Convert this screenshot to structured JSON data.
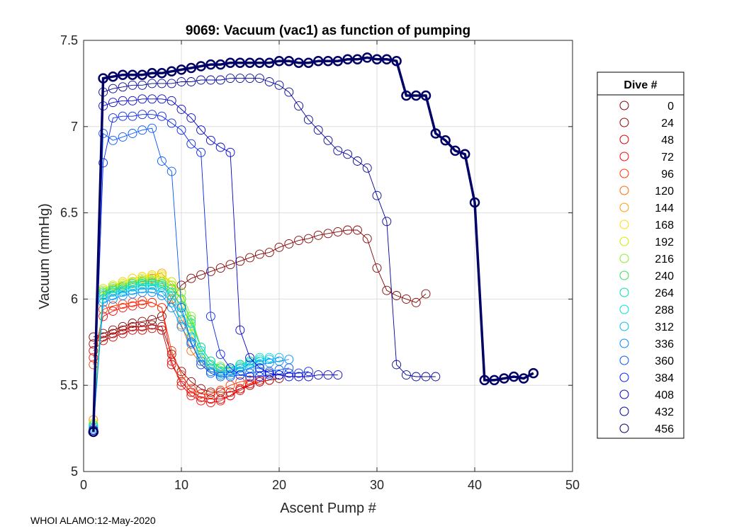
{
  "chart_data": {
    "type": "scatter",
    "title": "9069: Vacuum (vac1) as function of pumping",
    "xlabel": "Ascent Pump #",
    "ylabel": "Vacuum (mmHg)",
    "xlim": [
      0,
      50
    ],
    "ylim": [
      5,
      7.5
    ],
    "xticks": [
      0,
      10,
      20,
      30,
      40,
      50
    ],
    "yticks": [
      5,
      5.5,
      6,
      6.5,
      7,
      7.5
    ],
    "xtick_labels": [
      "0",
      "10",
      "20",
      "30",
      "40",
      "50"
    ],
    "ytick_labels": [
      "5",
      "5.5",
      "6",
      "6.5",
      "7",
      "7.5"
    ],
    "grid": true,
    "legend_title": "Dive #",
    "legend_placement": "right-outside",
    "legend": [
      {
        "label": "0",
        "color": "#800000"
      },
      {
        "label": "24",
        "color": "#990000"
      },
      {
        "label": "48",
        "color": "#cc0000"
      },
      {
        "label": "72",
        "color": "#ff0000"
      },
      {
        "label": "96",
        "color": "#ff3300"
      },
      {
        "label": "120",
        "color": "#ff6600"
      },
      {
        "label": "144",
        "color": "#ff9900"
      },
      {
        "label": "168",
        "color": "#ffdd00"
      },
      {
        "label": "192",
        "color": "#ccee00"
      },
      {
        "label": "216",
        "color": "#88ee22"
      },
      {
        "label": "240",
        "color": "#33dd55"
      },
      {
        "label": "264",
        "color": "#00ddaa"
      },
      {
        "label": "288",
        "color": "#00dddd"
      },
      {
        "label": "312",
        "color": "#00bbee"
      },
      {
        "label": "336",
        "color": "#0088ff"
      },
      {
        "label": "360",
        "color": "#0055ff"
      },
      {
        "label": "384",
        "color": "#0022ee"
      },
      {
        "label": "408",
        "color": "#0000cc"
      },
      {
        "label": "432",
        "color": "#000099"
      },
      {
        "label": "456",
        "color": "#000066"
      }
    ],
    "series": [
      {
        "name": "0",
        "color": "#800000",
        "x": [
          1,
          2,
          3,
          4,
          5,
          6,
          7,
          8,
          9,
          10,
          11,
          12,
          13,
          14,
          15,
          16,
          17,
          18,
          19,
          20,
          21,
          22,
          23,
          24,
          25,
          26,
          27,
          28,
          29,
          30,
          31,
          32,
          33,
          34,
          35
        ],
        "y": [
          5.78,
          5.8,
          5.82,
          5.84,
          5.86,
          5.87,
          5.88,
          5.9,
          6.0,
          6.08,
          6.12,
          6.14,
          6.16,
          6.18,
          6.2,
          6.22,
          6.24,
          6.26,
          6.27,
          6.3,
          6.32,
          6.34,
          6.35,
          6.37,
          6.38,
          6.39,
          6.4,
          6.4,
          6.35,
          6.18,
          6.05,
          6.02,
          6.0,
          5.98,
          6.03
        ]
      },
      {
        "name": "24",
        "color": "#990000",
        "x": [
          1,
          2,
          3,
          4,
          5,
          6,
          7,
          8,
          9,
          10,
          11,
          12,
          13,
          14,
          15,
          16,
          17,
          18,
          19,
          20
        ],
        "y": [
          5.74,
          5.78,
          5.8,
          5.82,
          5.84,
          5.84,
          5.85,
          5.84,
          5.68,
          5.58,
          5.52,
          5.48,
          5.46,
          5.46,
          5.46,
          5.48,
          5.5,
          5.52,
          5.53,
          5.54
        ]
      },
      {
        "name": "48",
        "color": "#cc0000",
        "x": [
          1,
          2,
          3,
          4,
          5,
          6,
          7,
          8,
          9,
          10,
          11,
          12,
          13,
          14,
          15,
          16,
          17,
          18,
          19
        ],
        "y": [
          5.7,
          5.76,
          5.78,
          5.8,
          5.82,
          5.82,
          5.83,
          5.82,
          5.62,
          5.52,
          5.46,
          5.43,
          5.42,
          5.42,
          5.44,
          5.47,
          5.5,
          5.52,
          5.53
        ]
      },
      {
        "name": "72",
        "color": "#ff0000",
        "x": [
          1,
          2,
          3,
          4,
          5,
          6,
          7,
          8,
          9,
          10,
          11,
          12,
          13,
          14,
          15,
          16,
          17,
          18
        ],
        "y": [
          5.66,
          5.9,
          5.93,
          5.95,
          5.96,
          5.97,
          5.98,
          5.95,
          5.64,
          5.5,
          5.44,
          5.41,
          5.4,
          5.41,
          5.44,
          5.48,
          5.51,
          5.53
        ]
      },
      {
        "name": "96",
        "color": "#ff3300",
        "x": [
          1,
          2,
          3,
          4,
          5,
          6,
          7,
          8,
          9,
          10,
          11,
          12,
          13,
          14,
          15,
          16,
          17
        ],
        "y": [
          5.62,
          5.94,
          5.96,
          5.97,
          5.98,
          5.99,
          5.98,
          5.95,
          5.7,
          5.56,
          5.48,
          5.45,
          5.45,
          5.47,
          5.5,
          5.52,
          5.53
        ]
      },
      {
        "name": "120",
        "color": "#ff6600",
        "x": [
          1,
          2,
          3,
          4,
          5,
          6,
          7,
          8,
          9,
          10,
          11,
          12,
          13,
          14,
          15,
          16
        ],
        "y": [
          5.3,
          6.02,
          6.05,
          6.07,
          6.09,
          6.1,
          6.12,
          6.1,
          6.0,
          5.85,
          5.7,
          5.62,
          5.58,
          5.57,
          5.58,
          5.6
        ]
      },
      {
        "name": "144",
        "color": "#ff9900",
        "x": [
          1,
          2,
          3,
          4,
          5,
          6,
          7,
          8,
          9,
          10,
          11,
          12,
          13,
          14,
          15
        ],
        "y": [
          5.3,
          6.04,
          6.07,
          6.1,
          6.12,
          6.13,
          6.14,
          6.15,
          6.08,
          5.92,
          5.74,
          5.64,
          5.6,
          5.58,
          5.59
        ]
      },
      {
        "name": "168",
        "color": "#ffdd00",
        "x": [
          1,
          2,
          3,
          4,
          5,
          6,
          7,
          8,
          9,
          10,
          11,
          12,
          13,
          14,
          15
        ],
        "y": [
          5.28,
          6.06,
          6.08,
          6.1,
          6.12,
          6.13,
          6.14,
          6.14,
          6.1,
          6.0,
          5.8,
          5.66,
          5.6,
          5.58,
          5.6
        ]
      },
      {
        "name": "192",
        "color": "#ccee00",
        "x": [
          1,
          2,
          3,
          4,
          5,
          6,
          7,
          8,
          9,
          10,
          11,
          12,
          13,
          14,
          15
        ],
        "y": [
          5.28,
          6.06,
          6.08,
          6.09,
          6.1,
          6.12,
          6.13,
          6.13,
          6.1,
          6.04,
          5.84,
          5.68,
          5.62,
          5.6,
          5.6
        ]
      },
      {
        "name": "216",
        "color": "#88ee22",
        "x": [
          1,
          2,
          3,
          4,
          5,
          6,
          7,
          8,
          9,
          10,
          11,
          12,
          13,
          14,
          15,
          16
        ],
        "y": [
          5.27,
          6.05,
          6.07,
          6.08,
          6.1,
          6.11,
          6.11,
          6.1,
          6.08,
          6.04,
          5.9,
          5.72,
          5.64,
          5.61,
          5.6,
          5.62
        ]
      },
      {
        "name": "240",
        "color": "#33dd55",
        "x": [
          1,
          2,
          3,
          4,
          5,
          6,
          7,
          8,
          9,
          10,
          11,
          12,
          13,
          14,
          15,
          16,
          17
        ],
        "y": [
          5.27,
          6.04,
          6.06,
          6.07,
          6.09,
          6.1,
          6.1,
          6.09,
          6.06,
          6.0,
          5.88,
          5.72,
          5.64,
          5.6,
          5.6,
          5.62,
          5.64
        ]
      },
      {
        "name": "264",
        "color": "#00ddaa",
        "x": [
          1,
          2,
          3,
          4,
          5,
          6,
          7,
          8,
          9,
          10,
          11,
          12,
          13,
          14,
          15,
          16,
          17,
          18
        ],
        "y": [
          5.26,
          6.03,
          6.05,
          6.06,
          6.08,
          6.09,
          6.09,
          6.08,
          6.04,
          5.96,
          5.86,
          5.72,
          5.64,
          5.6,
          5.6,
          5.62,
          5.64,
          5.66
        ]
      },
      {
        "name": "288",
        "color": "#00dddd",
        "x": [
          1,
          2,
          3,
          4,
          5,
          6,
          7,
          8,
          9,
          10,
          11,
          12,
          13,
          14,
          15,
          16,
          17,
          18,
          19
        ],
        "y": [
          5.26,
          6.02,
          6.04,
          6.05,
          6.07,
          6.08,
          6.08,
          6.07,
          6.02,
          5.92,
          5.82,
          5.7,
          5.62,
          5.58,
          5.59,
          5.61,
          5.63,
          5.65,
          5.66
        ]
      },
      {
        "name": "312",
        "color": "#00bbee",
        "x": [
          1,
          2,
          3,
          4,
          5,
          6,
          7,
          8,
          9,
          10,
          11,
          12,
          13,
          14,
          15,
          16,
          17,
          18,
          19,
          20
        ],
        "y": [
          5.25,
          6.0,
          6.02,
          6.04,
          6.05,
          6.06,
          6.06,
          6.04,
          5.98,
          5.88,
          5.78,
          5.66,
          5.6,
          5.57,
          5.58,
          5.6,
          5.62,
          5.64,
          5.65,
          5.66
        ]
      },
      {
        "name": "336",
        "color": "#0088ff",
        "x": [
          1,
          2,
          3,
          4,
          5,
          6,
          7,
          8,
          9,
          10,
          11,
          12,
          13,
          14,
          15,
          16,
          17,
          18,
          19,
          20,
          21
        ],
        "y": [
          5.25,
          5.98,
          6.0,
          6.02,
          6.03,
          6.04,
          6.04,
          6.02,
          5.95,
          5.84,
          5.74,
          5.64,
          5.58,
          5.56,
          5.56,
          5.58,
          5.6,
          5.62,
          5.63,
          5.64,
          5.65
        ]
      },
      {
        "name": "360",
        "color": "#0055ff",
        "x": [
          1,
          2,
          3,
          4,
          5,
          6,
          7,
          8,
          9,
          10,
          11,
          12,
          13,
          14,
          15,
          16,
          17,
          18,
          19,
          20,
          21
        ],
        "y": [
          5.24,
          6.96,
          6.92,
          6.94,
          6.96,
          6.98,
          6.99,
          6.8,
          6.74,
          5.95,
          5.75,
          5.62,
          5.57,
          5.55,
          5.55,
          5.56,
          5.57,
          5.58,
          5.58,
          5.59,
          5.6
        ]
      },
      {
        "name": "384",
        "color": "#0022ee",
        "x": [
          1,
          2,
          3,
          4,
          5,
          6,
          7,
          8,
          9,
          10,
          11,
          12,
          13,
          14,
          15,
          16,
          17,
          18,
          19,
          20,
          21,
          22,
          23
        ],
        "y": [
          5.24,
          6.79,
          7.05,
          7.06,
          7.06,
          7.07,
          7.07,
          7.06,
          7.02,
          6.98,
          6.9,
          6.85,
          5.9,
          5.68,
          5.6,
          5.56,
          5.55,
          5.55,
          5.56,
          5.56,
          5.57,
          5.57,
          5.58
        ]
      },
      {
        "name": "408",
        "color": "#0000cc",
        "x": [
          1,
          2,
          3,
          4,
          5,
          6,
          7,
          8,
          9,
          10,
          11,
          12,
          13,
          14,
          15,
          16,
          17,
          18,
          19,
          20,
          21,
          22,
          23,
          24,
          25,
          26
        ],
        "y": [
          5.24,
          7.12,
          7.14,
          7.15,
          7.15,
          7.16,
          7.16,
          7.16,
          7.15,
          7.1,
          7.05,
          6.98,
          6.92,
          6.88,
          6.85,
          5.82,
          5.66,
          5.6,
          5.57,
          5.56,
          5.55,
          5.55,
          5.55,
          5.56,
          5.56,
          5.56
        ]
      },
      {
        "name": "432",
        "color": "#000099",
        "x": [
          1,
          2,
          3,
          4,
          5,
          6,
          7,
          8,
          9,
          10,
          11,
          12,
          13,
          14,
          15,
          16,
          17,
          18,
          19,
          20,
          21,
          22,
          23,
          24,
          25,
          26,
          27,
          28,
          29,
          30,
          31,
          32,
          33,
          34,
          35,
          36
        ],
        "y": [
          5.23,
          7.2,
          7.22,
          7.23,
          7.24,
          7.24,
          7.25,
          7.25,
          7.25,
          7.26,
          7.26,
          7.27,
          7.27,
          7.27,
          7.28,
          7.28,
          7.28,
          7.28,
          7.26,
          7.24,
          7.2,
          7.12,
          7.04,
          6.98,
          6.92,
          6.86,
          6.84,
          6.8,
          6.76,
          6.6,
          6.45,
          5.62,
          5.56,
          5.55,
          5.55,
          5.55
        ]
      },
      {
        "name": "456",
        "color": "#000066",
        "x": [
          1,
          2,
          3,
          4,
          5,
          6,
          7,
          8,
          9,
          10,
          11,
          12,
          13,
          14,
          15,
          16,
          17,
          18,
          19,
          20,
          21,
          22,
          23,
          24,
          25,
          26,
          27,
          28,
          29,
          30,
          31,
          32,
          33,
          34,
          35,
          36,
          37,
          38,
          39,
          40,
          41,
          42,
          43,
          44,
          45,
          46
        ],
        "y": [
          5.23,
          7.28,
          7.29,
          7.3,
          7.3,
          7.3,
          7.31,
          7.31,
          7.32,
          7.33,
          7.34,
          7.35,
          7.36,
          7.36,
          7.37,
          7.37,
          7.37,
          7.37,
          7.37,
          7.38,
          7.38,
          7.37,
          7.37,
          7.38,
          7.38,
          7.38,
          7.39,
          7.39,
          7.4,
          7.39,
          7.39,
          7.38,
          7.18,
          7.18,
          7.18,
          6.96,
          6.92,
          6.86,
          6.84,
          6.56,
          5.53,
          5.53,
          5.54,
          5.55,
          5.54,
          5.57
        ],
        "bold": true
      }
    ],
    "footer": "WHOI ALAMO:12-May-2020"
  }
}
